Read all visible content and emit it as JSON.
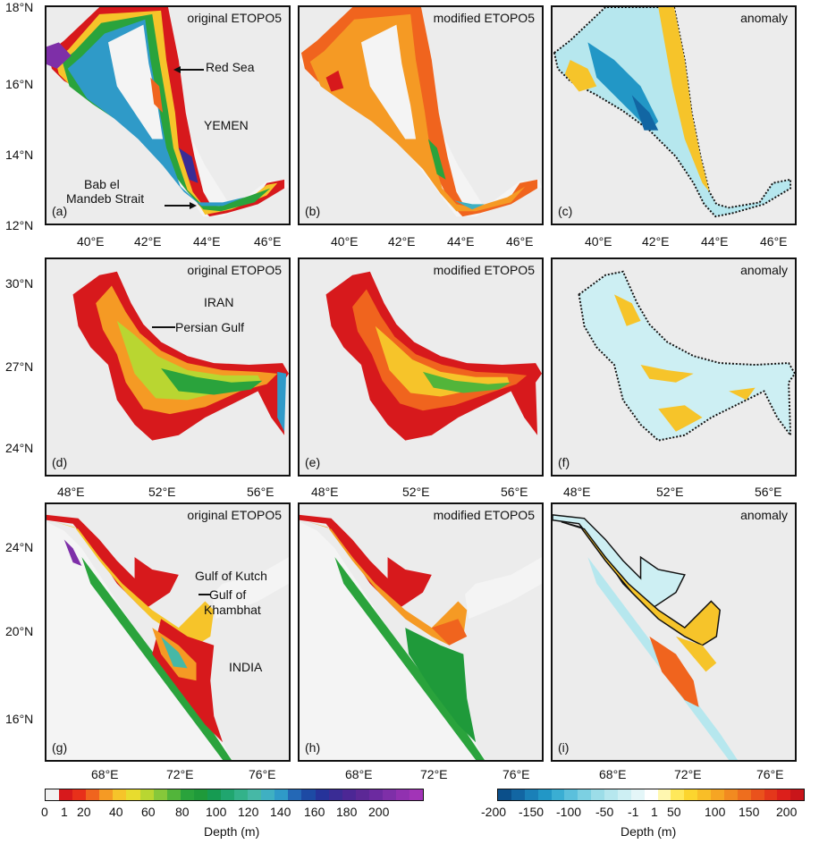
{
  "panels": [
    {
      "id": "a",
      "label": "(a)",
      "title": "original ETOPO5",
      "palette": "depth"
    },
    {
      "id": "b",
      "label": "(b)",
      "title": "modified ETOPO5",
      "palette": "depth_mod"
    },
    {
      "id": "c",
      "label": "(c)",
      "title": "anomaly",
      "palette": "anomaly"
    },
    {
      "id": "d",
      "label": "(d)",
      "title": "original ETOPO5",
      "palette": "depth"
    },
    {
      "id": "e",
      "label": "(e)",
      "title": "modified ETOPO5",
      "palette": "depth_mod"
    },
    {
      "id": "f",
      "label": "(f)",
      "title": "anomaly",
      "palette": "anomaly"
    },
    {
      "id": "g",
      "label": "(g)",
      "title": "original ETOPO5",
      "palette": "depth"
    },
    {
      "id": "h",
      "label": "(h)",
      "title": "modified ETOPO5",
      "palette": "depth_mod"
    },
    {
      "id": "i",
      "label": "(i)",
      "title": "anomaly",
      "palette": "anomaly"
    }
  ],
  "annotations": {
    "red_sea": "Red Sea",
    "yemen": "YEMEN",
    "bab1": "Bab el",
    "bab2": "Mandeb Strait",
    "iran": "IRAN",
    "persian_gulf": "Persian Gulf",
    "kutch": "Gulf  of  Kutch",
    "khambhat1": "Gulf of",
    "khambhat2": "Khambhat",
    "india": "INDIA"
  },
  "axes": {
    "row1": {
      "lat": [
        "18°N",
        "16°N",
        "14°N",
        "12°N"
      ],
      "lon": [
        "40°E",
        "42°E",
        "44°E",
        "46°E"
      ]
    },
    "row2": {
      "lat": [
        "30°N",
        "27°N",
        "24°N"
      ],
      "lon": [
        "48°E",
        "52°E",
        "56°E"
      ]
    },
    "row3": {
      "lat": [
        "24°N",
        "20°N",
        "16°N"
      ],
      "lon": [
        "68°E",
        "72°E",
        "76°E"
      ]
    }
  },
  "colorbars": {
    "depth": {
      "title": "Depth (m)",
      "labels": [
        "0",
        "1",
        "20",
        "40",
        "60",
        "80",
        "100",
        "120",
        "140",
        "160",
        "180",
        "200"
      ],
      "colors": [
        "#f2f2f2",
        "#d7191c",
        "#e8301a",
        "#f0641e",
        "#f59a24",
        "#f6c42a",
        "#e8dc2e",
        "#b9d631",
        "#86c83a",
        "#52b53a",
        "#2aa33c",
        "#1f9a3a",
        "#169b52",
        "#20a66f",
        "#33b28a",
        "#46b8a6",
        "#3fb0c2",
        "#2f9ac8",
        "#2468b6",
        "#1d4aa4",
        "#26339a",
        "#3a2c95",
        "#4c2795",
        "#5c2896",
        "#6c2aa0",
        "#7e2fa8",
        "#9131b0",
        "#a234b7"
      ]
    },
    "anomaly": {
      "title": "Depth (m)",
      "labels": [
        "-200",
        "-150",
        "-100",
        "-50",
        "-1",
        "1",
        "50",
        "100",
        "150",
        "200"
      ],
      "colors": [
        "#0b4f8a",
        "#1266a3",
        "#1a80b8",
        "#2297c6",
        "#3aaed3",
        "#5bc0dc",
        "#7cd0e2",
        "#9cdde8",
        "#b6e7ee",
        "#cdeff3",
        "#e4f6f8",
        "#ffffff",
        "#fff7b0",
        "#ffe85a",
        "#fcd52e",
        "#f9be27",
        "#f6a523",
        "#f28a20",
        "#ee6e1e",
        "#ea521c",
        "#e4371b",
        "#dc1f1b",
        "#c9151a"
      ]
    }
  }
}
